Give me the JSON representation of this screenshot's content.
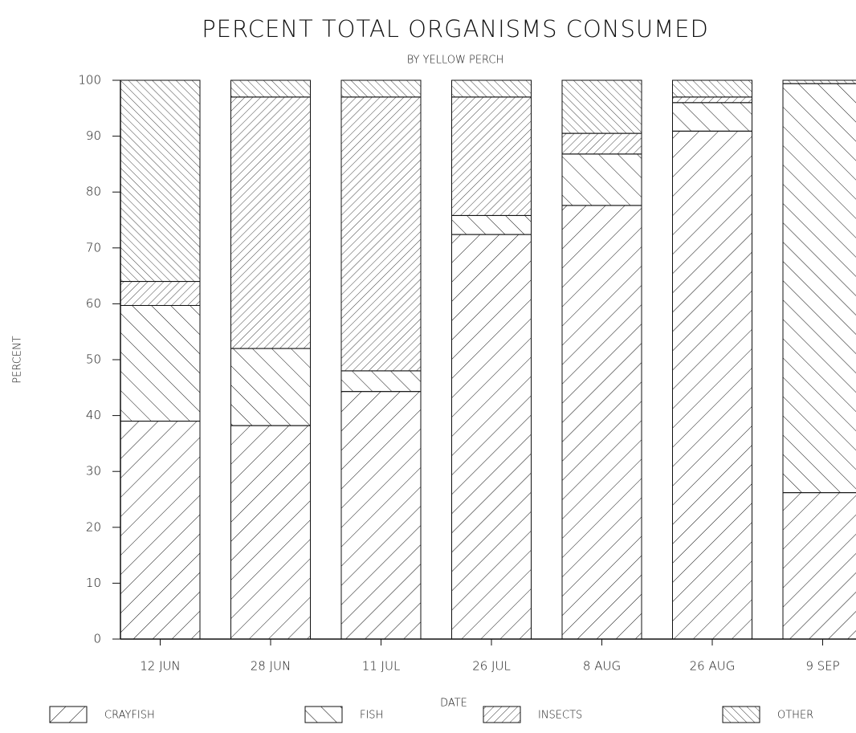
{
  "chart_data": {
    "type": "stacked_bar",
    "title": "PERCENT TOTAL ORGANISMS CONSUMED",
    "subtitle": "BY YELLOW PERCH",
    "x_label": "DATE",
    "y_label": "PERCENT",
    "categories": [
      "12 JUN",
      "28 JUN",
      "11 JUL",
      "26 JUL",
      "8 AUG",
      "26 AUG",
      "9 SEP"
    ],
    "series": [
      {
        "name": "CRAYFISH",
        "color": "#111111",
        "hatch": "/",
        "values": [
          39,
          38.2,
          44.3,
          72.4,
          77.6,
          90.9,
          26.2
        ]
      },
      {
        "name": "FISH",
        "color": "#111111",
        "hatch": "\\",
        "values": [
          20.7,
          13.8,
          3.7,
          3.4,
          9.2,
          5.1,
          73.2
        ]
      },
      {
        "name": "INSECTS",
        "color": "#111111",
        "hatch": "//",
        "values": [
          4.3,
          45,
          49,
          21.2,
          3.7,
          1,
          0
        ]
      },
      {
        "name": "OTHER",
        "color": "#111111",
        "hatch": "\\\\",
        "values": [
          36,
          3,
          3,
          3,
          9.5,
          3,
          0.6
        ]
      }
    ],
    "ylim": [
      0,
      100
    ],
    "yticks": [
      0,
      10,
      20,
      30,
      40,
      50,
      60,
      70,
      80,
      90,
      100
    ],
    "grid": false,
    "legend": "bottom"
  }
}
